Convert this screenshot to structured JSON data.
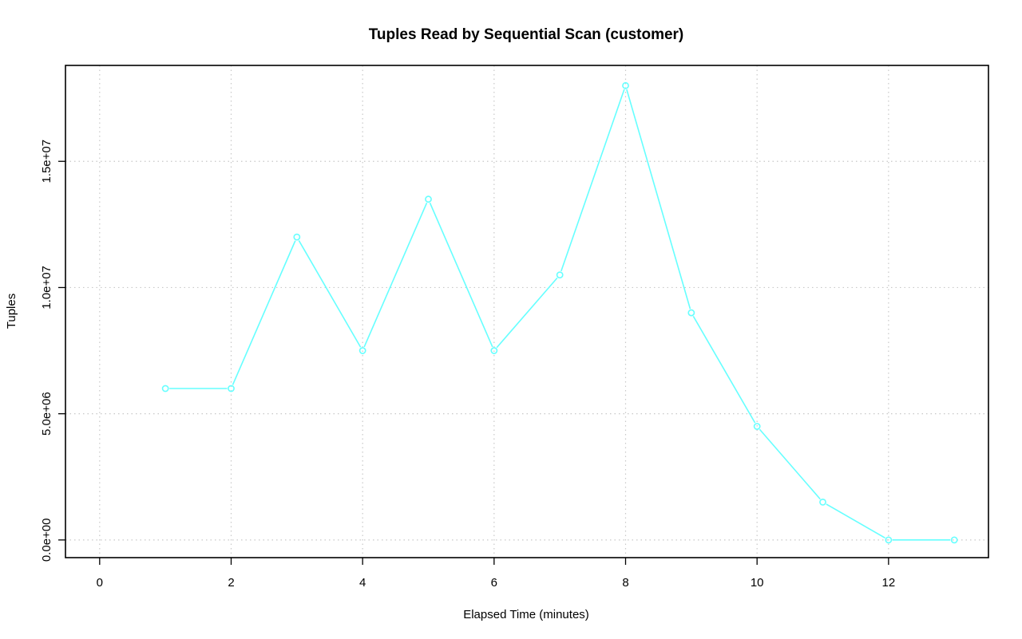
{
  "chart_data": {
    "type": "line",
    "title": "Tuples Read by Sequential Scan (customer)",
    "xlabel": "Elapsed Time (minutes)",
    "ylabel": "Tuples",
    "x": [
      1,
      2,
      3,
      4,
      5,
      6,
      7,
      8,
      9,
      10,
      11,
      12,
      13
    ],
    "series": [
      {
        "values": [
          6000000,
          6000000,
          12000000,
          7500000,
          13500000,
          7500000,
          10500000,
          18000000,
          9000000,
          4500000,
          1500000,
          0,
          0
        ]
      }
    ],
    "xlim": [
      -0.52,
      13.52
    ],
    "ylim": [
      -700000,
      18800000
    ],
    "xticks": [
      0,
      2,
      4,
      6,
      8,
      10,
      12
    ],
    "xtick_labels": [
      "0",
      "2",
      "4",
      "6",
      "8",
      "10",
      "12"
    ],
    "yticks": [
      0,
      5000000,
      10000000,
      15000000
    ],
    "ytick_labels": [
      "0.0e+00",
      "5.0e+06",
      "1.0e+07",
      "1.5e+07"
    ],
    "grid": true,
    "markers": "open-circle",
    "line_color": "#66ffff"
  }
}
